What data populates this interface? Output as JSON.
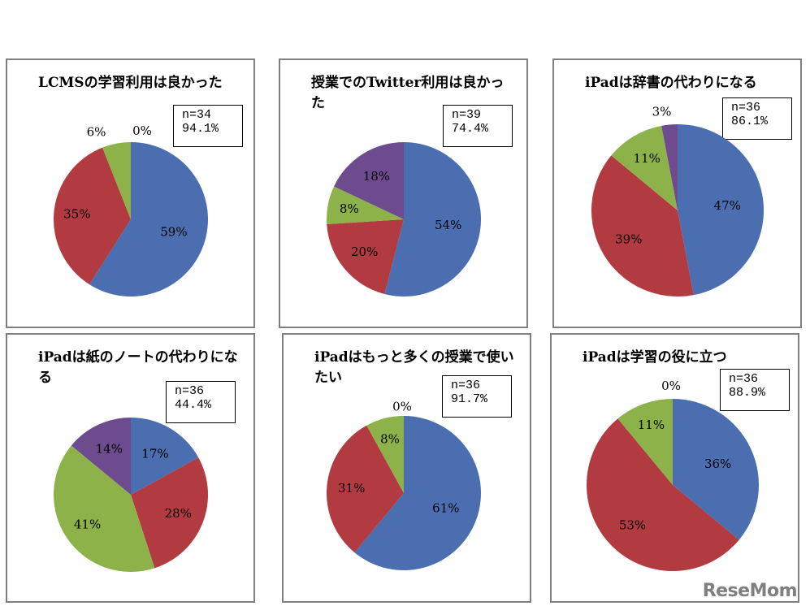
{
  "chart_data": [
    {
      "type": "pie",
      "title": "LCMSの学習利用は良かった",
      "n_text": "n=34",
      "pct_text": "94.1%",
      "slices": [
        {
          "value": 59,
          "label": "59%",
          "color": "#4a6eb0"
        },
        {
          "value": 35,
          "label": "35%",
          "color": "#b13b40"
        },
        {
          "value": 6,
          "label": "6%",
          "color": "#8db249"
        },
        {
          "value": 0,
          "label": "0%",
          "color": "#6e4b8f"
        }
      ]
    },
    {
      "type": "pie",
      "title": "授業でのTwitter利用は良かった",
      "n_text": "n=39",
      "pct_text": "74.4%",
      "slices": [
        {
          "value": 54,
          "label": "54%",
          "color": "#4a6eb0"
        },
        {
          "value": 20,
          "label": "20%",
          "color": "#b13b40"
        },
        {
          "value": 8,
          "label": "8%",
          "color": "#8db249"
        },
        {
          "value": 18,
          "label": "18%",
          "color": "#6e4b8f"
        }
      ]
    },
    {
      "type": "pie",
      "title": "iPadは辞書の代わりになる",
      "n_text": "n=36",
      "pct_text": "86.1%",
      "slices": [
        {
          "value": 47,
          "label": "47%",
          "color": "#4a6eb0"
        },
        {
          "value": 39,
          "label": "39%",
          "color": "#b13b40"
        },
        {
          "value": 11,
          "label": "11%",
          "color": "#8db249"
        },
        {
          "value": 3,
          "label": "3%",
          "color": "#6e4b8f"
        }
      ]
    },
    {
      "type": "pie",
      "title": "iPadは紙のノートの代わりになる",
      "n_text": "n=36",
      "pct_text": "44.4%",
      "slices": [
        {
          "value": 17,
          "label": "17%",
          "color": "#4a6eb0"
        },
        {
          "value": 28,
          "label": "28%",
          "color": "#b13b40"
        },
        {
          "value": 41,
          "label": "41%",
          "color": "#8db249"
        },
        {
          "value": 14,
          "label": "14%",
          "color": "#6e4b8f"
        }
      ]
    },
    {
      "type": "pie",
      "title": "iPadはもっと多くの授業で使いたい",
      "n_text": "n=36",
      "pct_text": "91.7%",
      "slices": [
        {
          "value": 61,
          "label": "61%",
          "color": "#4a6eb0"
        },
        {
          "value": 31,
          "label": "31%",
          "color": "#b13b40"
        },
        {
          "value": 8,
          "label": "8%",
          "color": "#8db249"
        },
        {
          "value": 0,
          "label": "0%",
          "color": "#6e4b8f"
        }
      ]
    },
    {
      "type": "pie",
      "title": "iPadは学習の役に立つ",
      "n_text": "n=36",
      "pct_text": "88.9%",
      "slices": [
        {
          "value": 36,
          "label": "36%",
          "color": "#4a6eb0"
        },
        {
          "value": 53,
          "label": "53%",
          "color": "#b13b40"
        },
        {
          "value": 11,
          "label": "11%",
          "color": "#8db249"
        },
        {
          "value": 0,
          "label": "0%",
          "color": "#6e4b8f"
        }
      ]
    }
  ],
  "logo_text": "ReseMom"
}
